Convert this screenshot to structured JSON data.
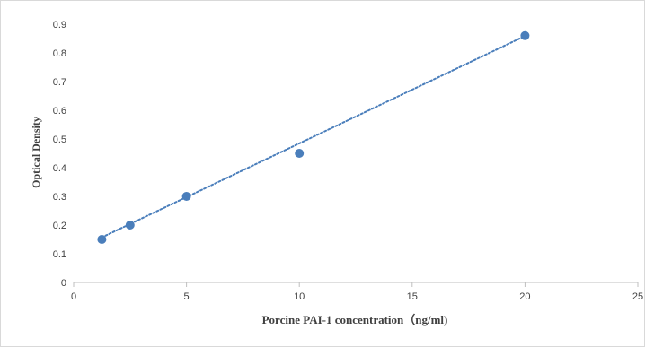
{
  "chart_data": {
    "type": "scatter",
    "title": "",
    "xlabel": "Porcine PAI-1 concentration（ng/ml)",
    "ylabel": "Optical Density",
    "xlim": [
      0,
      25
    ],
    "ylim": [
      0,
      0.9
    ],
    "xticks": [
      "0",
      "5",
      "10",
      "15",
      "20",
      "25"
    ],
    "yticks": [
      "0",
      "0.1",
      "0.2",
      "0.3",
      "0.4",
      "0.5",
      "0.6",
      "0.7",
      "0.8",
      "0.9"
    ],
    "grid": false,
    "legend": "none",
    "series": [
      {
        "x": [
          1.25,
          2.5,
          5,
          10,
          20
        ],
        "y": [
          0.15,
          0.2,
          0.3,
          0.45,
          0.86
        ],
        "color": "#4a7ebb"
      }
    ],
    "trendline": {
      "type": "linear",
      "style": "dotted",
      "color": "#4a7ebb",
      "x": [
        1.25,
        20
      ],
      "y": [
        0.157,
        0.859
      ]
    }
  }
}
